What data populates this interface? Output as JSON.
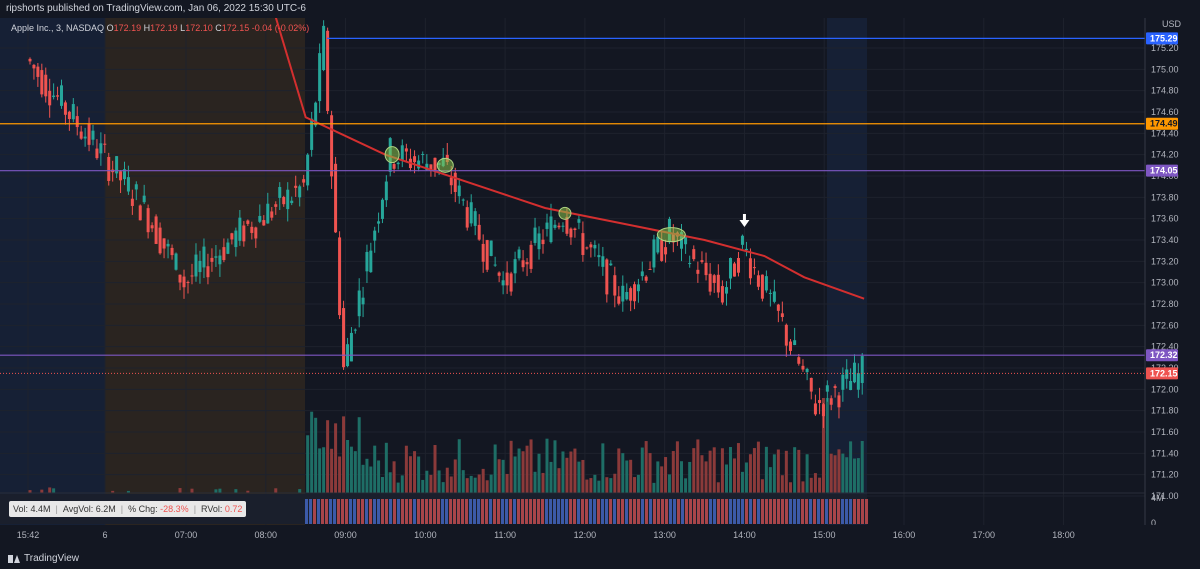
{
  "header": {
    "published": "ripshorts published on TradingView.com, Jan 06, 2022 15:30 UTC-6"
  },
  "legend": {
    "symbol": "Apple Inc., 3, NASDAQ",
    "o_label": "O",
    "o": "172.19",
    "h_label": "H",
    "h": "172.19",
    "l_label": "L",
    "l": "172.10",
    "c_label": "C",
    "c": "172.15",
    "change": "-0.04 (-0.02%)"
  },
  "volume_box": {
    "vol_label": "Vol:",
    "vol": "4.4M",
    "avgvol_label": "AvgVol:",
    "avgvol": "6.2M",
    "chg_label": "% Chg:",
    "chg": "-28.3%",
    "rvol_label": "RVol:",
    "rvol": "0.72"
  },
  "brand": {
    "name": "TradingView"
  },
  "colors": {
    "background": "#131722",
    "up": "#26a69a",
    "down": "#ef5350",
    "ma": "#d32f2f",
    "blue_line": "#2962ff",
    "orange_line": "#ff9800",
    "purple_line": "#7e57c2",
    "premarket": "#2a2420",
    "afterhours": "#162035"
  },
  "chart_data": {
    "type": "candlestick",
    "y_axis": {
      "unit": "USD",
      "range": [
        170.85,
        176.0
      ],
      "ticks": [
        "171.00",
        "171.20",
        "171.40",
        "171.60",
        "171.80",
        "172.00",
        "172.20",
        "172.40",
        "172.60",
        "172.80",
        "173.00",
        "173.20",
        "173.40",
        "173.60",
        "173.80",
        "174.00",
        "174.20",
        "174.40",
        "174.60",
        "174.80",
        "175.00",
        "175.20"
      ]
    },
    "x_axis": {
      "ticks": [
        "15:42",
        "6",
        "07:00",
        "08:00",
        "09:00",
        "10:00",
        "11:00",
        "12:00",
        "13:00",
        "14:00",
        "15:00",
        "16:00",
        "17:00",
        "18:00"
      ]
    },
    "levels": [
      {
        "price": 175.29,
        "label": "175.29",
        "color": "#2962ff"
      },
      {
        "price": 174.49,
        "label": "174.49",
        "color": "#ff9800"
      },
      {
        "price": 174.05,
        "label": "174.05",
        "color": "#7e57c2"
      },
      {
        "price": 172.32,
        "label": "172.32",
        "color": "#7e57c2"
      }
    ],
    "last_price": {
      "price": 172.15,
      "label": "172.15",
      "color": "#ef5350"
    },
    "volume_axis": {
      "ticks": [
        "4M",
        "0"
      ]
    },
    "key_points": [
      {
        "time": "15:42",
        "price": 175.1
      },
      {
        "time": "06:30",
        "price": 173.7
      },
      {
        "time": "07:00",
        "price": 173.0
      },
      {
        "time": "07:45",
        "price": 173.5
      },
      {
        "time": "08:30",
        "price": 173.9
      },
      {
        "time": "08:45",
        "price": 175.28
      },
      {
        "time": "09:00",
        "price": 172.2
      },
      {
        "time": "09:35",
        "price": 174.2
      },
      {
        "time": "10:15",
        "price": 174.1
      },
      {
        "time": "11:00",
        "price": 173.0
      },
      {
        "time": "11:45",
        "price": 173.65
      },
      {
        "time": "12:30",
        "price": 172.85
      },
      {
        "time": "13:05",
        "price": 173.45
      },
      {
        "time": "13:45",
        "price": 172.9
      },
      {
        "time": "14:00",
        "price": 173.35
      },
      {
        "time": "14:30",
        "price": 172.6
      },
      {
        "time": "14:55",
        "price": 171.85
      },
      {
        "time": "15:30",
        "price": 172.15
      }
    ],
    "ma_line": [
      {
        "time": "08:00",
        "price": 175.8
      },
      {
        "time": "08:30",
        "price": 174.55
      },
      {
        "time": "09:30",
        "price": 174.2
      },
      {
        "time": "10:30",
        "price": 173.95
      },
      {
        "time": "11:30",
        "price": 173.7
      },
      {
        "time": "12:30",
        "price": 173.55
      },
      {
        "time": "13:30",
        "price": 173.4
      },
      {
        "time": "14:15",
        "price": 173.25
      },
      {
        "time": "14:45",
        "price": 173.05
      },
      {
        "time": "15:30",
        "price": 172.85
      }
    ]
  }
}
